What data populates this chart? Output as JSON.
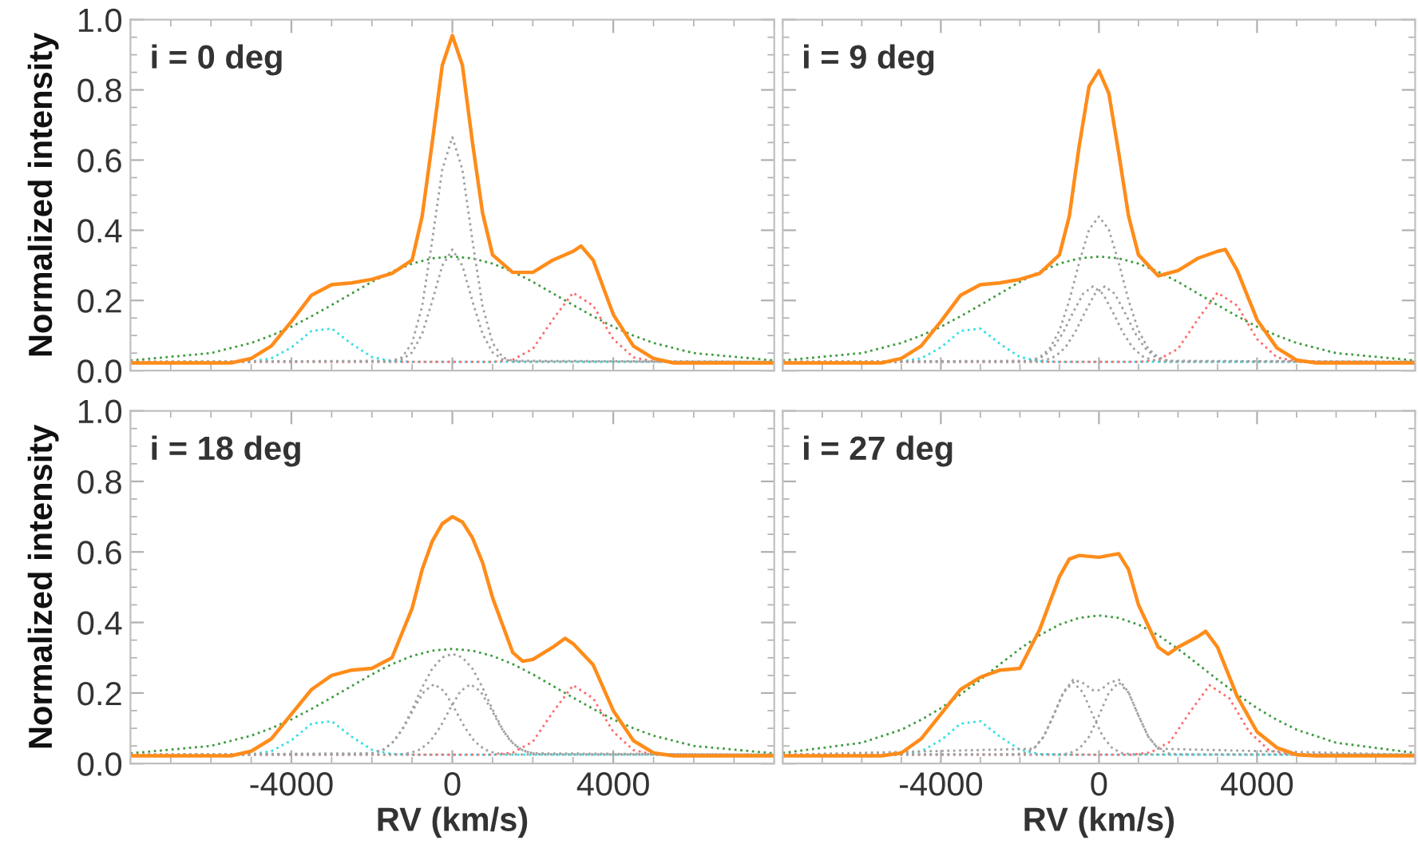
{
  "chart_data": [
    {
      "type": "line",
      "title": "i = 0 deg",
      "ylabel": "Normalized intensity",
      "tick_labels": "y",
      "xlim": [
        -8000,
        8000
      ],
      "ylim": [
        0,
        1.0
      ],
      "xticks": [
        {
          "value": -4000,
          "label": null
        },
        {
          "value": 0,
          "label": null
        },
        {
          "value": 4000,
          "label": null
        }
      ],
      "yticks": [
        {
          "value": 0,
          "label": "0.0"
        },
        0.2,
        0.4,
        0.6,
        0.8,
        {
          "value": 1.0,
          "label": "1.0"
        }
      ],
      "grid": false,
      "series": [
        {
          "color": "#3f9c3f",
          "line_style": "dotted",
          "x": [
            -8000,
            -6000,
            -5000,
            -4500,
            -4000,
            -3500,
            -3000,
            -2500,
            -2000,
            -1500,
            -1000,
            -500,
            0,
            500,
            1000,
            1500,
            2000,
            2500,
            3000,
            3500,
            4000,
            4500,
            5000,
            6000,
            8000
          ],
          "values": [
            0.029,
            0.05,
            0.079,
            0.1,
            0.125,
            0.155,
            0.187,
            0.22,
            0.253,
            0.282,
            0.305,
            0.32,
            0.325,
            0.32,
            0.305,
            0.282,
            0.253,
            0.22,
            0.187,
            0.155,
            0.125,
            0.1,
            0.079,
            0.05,
            0.029
          ]
        },
        {
          "color": "#33e0e6",
          "line_style": "dotted",
          "x": [
            -8000,
            -5000,
            -4500,
            -4000,
            -3500,
            -3000,
            -2500,
            -2000,
            -1500,
            -1000,
            8000
          ],
          "values": [
            0.025,
            0.026,
            0.035,
            0.066,
            0.113,
            0.12,
            0.076,
            0.039,
            0.027,
            0.025,
            0.025
          ]
        },
        {
          "color": "#ff6b6b",
          "line_style": "dotted",
          "x": [
            -8000,
            1000,
            1500,
            2000,
            2500,
            3000,
            3500,
            4000,
            4500,
            5000,
            8000
          ],
          "values": [
            0.025,
            0.025,
            0.031,
            0.062,
            0.146,
            0.222,
            0.185,
            0.09,
            0.038,
            0.026,
            0.025
          ]
        },
        {
          "color": "#a0a0a0",
          "line_style": "dotted",
          "x": [
            -8000,
            -1500,
            -1250,
            -1000,
            -750,
            -500,
            -250,
            0,
            250,
            500,
            750,
            1000,
            1250,
            1500,
            8000
          ],
          "values": [
            0.025,
            0.026,
            0.032,
            0.052,
            0.105,
            0.198,
            0.299,
            0.345,
            0.299,
            0.198,
            0.105,
            0.052,
            0.032,
            0.026,
            0.025
          ]
        },
        {
          "color": "#a0a0a0",
          "line_style": "dotted",
          "x": [
            -8000,
            -1500,
            -1250,
            -1000,
            -750,
            -500,
            -250,
            0,
            250,
            500,
            750,
            1000,
            1250,
            1500,
            8000
          ],
          "values": [
            0.025,
            0.028,
            0.038,
            0.079,
            0.184,
            0.371,
            0.573,
            0.665,
            0.573,
            0.371,
            0.184,
            0.079,
            0.038,
            0.028,
            0.025
          ]
        },
        {
          "color": "#ff8c1a",
          "line_style": "solid",
          "x": [
            -8000,
            -5500,
            -5000,
            -4500,
            -4000,
            -3500,
            -3000,
            -2500,
            -2000,
            -1500,
            -1000,
            -750,
            -500,
            -250,
            0,
            250,
            500,
            750,
            1000,
            1500,
            2000,
            2500,
            3000,
            3200,
            3500,
            4000,
            4500,
            5000,
            5500,
            8000
          ],
          "values": [
            0.022,
            0.022,
            0.035,
            0.07,
            0.14,
            0.215,
            0.245,
            0.25,
            0.26,
            0.277,
            0.315,
            0.44,
            0.65,
            0.87,
            0.955,
            0.87,
            0.65,
            0.45,
            0.33,
            0.28,
            0.28,
            0.315,
            0.34,
            0.355,
            0.315,
            0.16,
            0.07,
            0.035,
            0.022,
            0.022
          ]
        }
      ]
    },
    {
      "type": "line",
      "title": "i = 9 deg",
      "tick_labels": false,
      "xlim": [
        -8000,
        8000
      ],
      "ylim": [
        0,
        1.0
      ],
      "xticks": [
        {
          "value": -4000,
          "label": null
        },
        {
          "value": 0,
          "label": null
        },
        {
          "value": 4000,
          "label": null
        }
      ],
      "yticks": [
        {
          "value": 0,
          "label": null
        },
        {
          "value": 0.2,
          "label": null
        },
        {
          "value": 0.4,
          "label": null
        },
        {
          "value": 0.6,
          "label": null
        },
        {
          "value": 0.8,
          "label": null
        },
        {
          "value": 1.0,
          "label": null
        }
      ],
      "grid": false,
      "series": [
        {
          "color": "#3f9c3f",
          "line_style": "dotted",
          "x": [
            -8000,
            -6000,
            -5000,
            -4500,
            -4000,
            -3500,
            -3000,
            -2500,
            -2000,
            -1500,
            -1000,
            -500,
            0,
            500,
            1000,
            1500,
            2000,
            2500,
            3000,
            3500,
            4000,
            4500,
            5000,
            6000,
            8000
          ],
          "values": [
            0.029,
            0.05,
            0.079,
            0.1,
            0.125,
            0.155,
            0.187,
            0.22,
            0.253,
            0.282,
            0.305,
            0.32,
            0.325,
            0.32,
            0.305,
            0.282,
            0.253,
            0.22,
            0.187,
            0.155,
            0.125,
            0.1,
            0.079,
            0.05,
            0.029
          ]
        },
        {
          "color": "#33e0e6",
          "line_style": "dotted",
          "x": [
            -8000,
            -5000,
            -4500,
            -4000,
            -3500,
            -3000,
            -2500,
            -2000,
            -1500,
            -1000,
            8000
          ],
          "values": [
            0.025,
            0.026,
            0.035,
            0.066,
            0.113,
            0.12,
            0.076,
            0.039,
            0.027,
            0.025,
            0.025
          ]
        },
        {
          "color": "#ff6b6b",
          "line_style": "dotted",
          "x": [
            -8000,
            1000,
            1500,
            2000,
            2500,
            3000,
            3500,
            4000,
            4500,
            5000,
            8000
          ],
          "values": [
            0.025,
            0.025,
            0.031,
            0.062,
            0.146,
            0.222,
            0.185,
            0.09,
            0.038,
            0.026,
            0.025
          ]
        },
        {
          "color": "#a0a0a0",
          "line_style": "dotted",
          "x": [
            -8000,
            -1900,
            -1650,
            -1400,
            -1150,
            -900,
            -650,
            -400,
            -150,
            100,
            350,
            600,
            850,
            1100,
            1350,
            1600,
            8000
          ],
          "values": [
            0.025,
            0.026,
            0.03,
            0.041,
            0.066,
            0.11,
            0.167,
            0.219,
            0.24,
            0.219,
            0.167,
            0.11,
            0.066,
            0.041,
            0.03,
            0.026,
            0.025
          ]
        },
        {
          "color": "#a0a0a0",
          "line_style": "dotted",
          "x": [
            -8000,
            -1600,
            -1350,
            -1100,
            -850,
            -600,
            -350,
            -100,
            150,
            400,
            650,
            900,
            1150,
            1400,
            1650,
            1900,
            8000
          ],
          "values": [
            0.025,
            0.026,
            0.03,
            0.041,
            0.066,
            0.11,
            0.167,
            0.219,
            0.24,
            0.219,
            0.167,
            0.11,
            0.066,
            0.041,
            0.03,
            0.026,
            0.025
          ]
        },
        {
          "color": "#a0a0a0",
          "line_style": "dotted",
          "x": [
            -8000,
            -1750,
            -1500,
            -1250,
            -1000,
            -750,
            -500,
            -250,
            0,
            250,
            500,
            750,
            1000,
            1250,
            1500,
            1750,
            8000
          ],
          "values": [
            0.025,
            0.028,
            0.038,
            0.062,
            0.114,
            0.2,
            0.308,
            0.402,
            0.439,
            0.402,
            0.308,
            0.2,
            0.114,
            0.062,
            0.038,
            0.028,
            0.025
          ]
        },
        {
          "color": "#ff8c1a",
          "line_style": "solid",
          "x": [
            -8000,
            -5500,
            -5000,
            -4500,
            -4000,
            -3500,
            -3000,
            -2500,
            -2000,
            -1500,
            -1000,
            -750,
            -500,
            -250,
            0,
            250,
            500,
            750,
            1000,
            1500,
            2000,
            2500,
            3000,
            3200,
            3500,
            4000,
            4500,
            5000,
            5500,
            8000
          ],
          "values": [
            0.022,
            0.022,
            0.035,
            0.07,
            0.14,
            0.215,
            0.245,
            0.25,
            0.26,
            0.277,
            0.33,
            0.44,
            0.64,
            0.81,
            0.855,
            0.79,
            0.62,
            0.44,
            0.33,
            0.27,
            0.285,
            0.32,
            0.34,
            0.345,
            0.285,
            0.145,
            0.065,
            0.03,
            0.022,
            0.022
          ]
        }
      ]
    },
    {
      "type": "line",
      "title": "i = 18 deg",
      "xlabel": "RV (km/s)",
      "ylabel": "Normalized intensity",
      "xlim": [
        -8000,
        8000
      ],
      "ylim": [
        0,
        1.0
      ],
      "xticks": [
        -4000,
        0,
        4000
      ],
      "yticks": [
        {
          "value": 0,
          "label": "0.0"
        },
        0.2,
        0.4,
        0.6,
        0.8,
        {
          "value": 1.0,
          "label": "1.0"
        }
      ],
      "grid": false,
      "series": [
        {
          "color": "#3f9c3f",
          "line_style": "dotted",
          "x": [
            -8000,
            -6000,
            -5000,
            -4500,
            -4000,
            -3500,
            -3000,
            -2500,
            -2000,
            -1500,
            -1000,
            -500,
            0,
            500,
            1000,
            1500,
            2000,
            2500,
            3000,
            3500,
            4000,
            4500,
            5000,
            6000,
            8000
          ],
          "values": [
            0.029,
            0.05,
            0.079,
            0.1,
            0.125,
            0.155,
            0.187,
            0.22,
            0.253,
            0.282,
            0.305,
            0.32,
            0.325,
            0.32,
            0.305,
            0.282,
            0.253,
            0.22,
            0.187,
            0.155,
            0.125,
            0.1,
            0.079,
            0.05,
            0.029
          ]
        },
        {
          "color": "#33e0e6",
          "line_style": "dotted",
          "x": [
            -8000,
            -5000,
            -4500,
            -4000,
            -3500,
            -3000,
            -2500,
            -2000,
            -1500,
            -1000,
            8000
          ],
          "values": [
            0.025,
            0.026,
            0.035,
            0.066,
            0.113,
            0.12,
            0.076,
            0.039,
            0.027,
            0.025,
            0.025
          ]
        },
        {
          "color": "#ff6b6b",
          "line_style": "dotted",
          "x": [
            -8000,
            1000,
            1500,
            2000,
            2500,
            3000,
            3500,
            4000,
            4500,
            5000,
            8000
          ],
          "values": [
            0.025,
            0.025,
            0.031,
            0.062,
            0.146,
            0.222,
            0.185,
            0.09,
            0.038,
            0.026,
            0.025
          ]
        },
        {
          "color": "#a0a0a0",
          "line_style": "dotted",
          "x": [
            -8000,
            -2200,
            -1950,
            -1700,
            -1450,
            -1200,
            -950,
            -700,
            -450,
            -200,
            50,
            300,
            550,
            800,
            1050,
            1300,
            8000
          ],
          "values": [
            0.025,
            0.026,
            0.03,
            0.04,
            0.063,
            0.104,
            0.157,
            0.205,
            0.225,
            0.205,
            0.157,
            0.104,
            0.063,
            0.04,
            0.03,
            0.026,
            0.025
          ]
        },
        {
          "color": "#a0a0a0",
          "line_style": "dotted",
          "x": [
            -8000,
            -1300,
            -1050,
            -800,
            -550,
            -300,
            -50,
            200,
            450,
            700,
            950,
            1200,
            1450,
            1700,
            1950,
            2200,
            8000
          ],
          "values": [
            0.025,
            0.026,
            0.03,
            0.04,
            0.063,
            0.104,
            0.157,
            0.205,
            0.225,
            0.205,
            0.157,
            0.104,
            0.063,
            0.04,
            0.03,
            0.026,
            0.025
          ]
        },
        {
          "color": "#a0a0a0",
          "line_style": "dotted",
          "x": [
            -8000,
            -2000,
            -1750,
            -1500,
            -1250,
            -1000,
            -750,
            -500,
            -250,
            0,
            250,
            500,
            750,
            1000,
            1250,
            1500,
            1750,
            2000,
            8000
          ],
          "values": [
            0.025,
            0.029,
            0.037,
            0.058,
            0.096,
            0.153,
            0.216,
            0.269,
            0.301,
            0.311,
            0.301,
            0.269,
            0.216,
            0.153,
            0.096,
            0.058,
            0.037,
            0.029,
            0.025
          ]
        },
        {
          "color": "#ff8c1a",
          "line_style": "solid",
          "x": [
            -8000,
            -5500,
            -5000,
            -4500,
            -4000,
            -3500,
            -3000,
            -2500,
            -2000,
            -1500,
            -1000,
            -750,
            -500,
            -250,
            0,
            250,
            500,
            750,
            1000,
            1500,
            1750,
            2000,
            2500,
            2800,
            3000,
            3500,
            4000,
            4500,
            5000,
            5500,
            8000
          ],
          "values": [
            0.022,
            0.022,
            0.035,
            0.07,
            0.14,
            0.21,
            0.25,
            0.265,
            0.27,
            0.3,
            0.44,
            0.55,
            0.63,
            0.68,
            0.7,
            0.685,
            0.64,
            0.57,
            0.47,
            0.315,
            0.29,
            0.295,
            0.33,
            0.355,
            0.34,
            0.28,
            0.15,
            0.065,
            0.03,
            0.022,
            0.022
          ]
        }
      ]
    },
    {
      "type": "line",
      "title": "i = 27 deg",
      "xlabel": "RV (km/s)",
      "tick_labels": "x",
      "xlim": [
        -8000,
        8000
      ],
      "ylim": [
        0,
        1.0
      ],
      "xticks": [
        -4000,
        0,
        4000
      ],
      "yticks": [
        {
          "value": 0,
          "label": null
        },
        {
          "value": 0.2,
          "label": null
        },
        {
          "value": 0.4,
          "label": null
        },
        {
          "value": 0.6,
          "label": null
        },
        {
          "value": 0.8,
          "label": null
        },
        {
          "value": 1.0,
          "label": null
        }
      ],
      "grid": false,
      "series": [
        {
          "color": "#3f9c3f",
          "line_style": "dotted",
          "x": [
            -8000,
            -6000,
            -5000,
            -4500,
            -4000,
            -3500,
            -3000,
            -2500,
            -2000,
            -1500,
            -1000,
            -500,
            0,
            500,
            1000,
            1500,
            2000,
            2500,
            3000,
            3500,
            4000,
            4500,
            5000,
            6000,
            8000
          ],
          "values": [
            0.03,
            0.059,
            0.096,
            0.124,
            0.157,
            0.196,
            0.238,
            0.282,
            0.325,
            0.364,
            0.394,
            0.413,
            0.42,
            0.413,
            0.394,
            0.364,
            0.325,
            0.282,
            0.238,
            0.196,
            0.157,
            0.124,
            0.096,
            0.059,
            0.03
          ]
        },
        {
          "color": "#33e0e6",
          "line_style": "dotted",
          "x": [
            -8000,
            -5000,
            -4500,
            -4000,
            -3500,
            -3000,
            -2500,
            -2000,
            -1500,
            -1000,
            8000
          ],
          "values": [
            0.025,
            0.026,
            0.035,
            0.066,
            0.113,
            0.12,
            0.076,
            0.039,
            0.027,
            0.025,
            0.025
          ]
        },
        {
          "color": "#ff6b6b",
          "line_style": "dotted",
          "x": [
            -8000,
            800,
            1300,
            1800,
            2300,
            2800,
            3300,
            3800,
            4300,
            4800,
            8000
          ],
          "values": [
            0.025,
            0.025,
            0.031,
            0.062,
            0.146,
            0.222,
            0.185,
            0.09,
            0.038,
            0.026,
            0.025
          ]
        },
        {
          "color": "#a0a0a0",
          "line_style": "dotted",
          "x": [
            -8000,
            -2150,
            -1900,
            -1650,
            -1400,
            -1150,
            -900,
            -650,
            -400,
            -150,
            100,
            350,
            600,
            850,
            8000
          ],
          "values": [
            0.025,
            0.026,
            0.029,
            0.042,
            0.076,
            0.136,
            0.201,
            0.23,
            0.201,
            0.136,
            0.076,
            0.042,
            0.029,
            0.026,
            0.025
          ]
        },
        {
          "color": "#a0a0a0",
          "line_style": "dotted",
          "x": [
            -8000,
            -1000,
            -750,
            -500,
            -250,
            0,
            250,
            500,
            750,
            1000,
            1250,
            1500,
            1750,
            2000,
            8000
          ],
          "values": [
            0.025,
            0.026,
            0.029,
            0.042,
            0.076,
            0.136,
            0.201,
            0.23,
            0.201,
            0.136,
            0.076,
            0.042,
            0.029,
            0.026,
            0.025
          ]
        },
        {
          "color": "#a0a0a0",
          "line_style": "dotted",
          "x": [
            -8000,
            -1650,
            -1400,
            -1150,
            -900,
            -650,
            -400,
            -150,
            0,
            100,
            250,
            500,
            750,
            1000,
            1250,
            1500,
            8000
          ],
          "values": [
            0.025,
            0.042,
            0.076,
            0.136,
            0.202,
            0.238,
            0.228,
            0.208,
            0.208,
            0.214,
            0.228,
            0.238,
            0.202,
            0.136,
            0.076,
            0.042,
            0.025
          ]
        },
        {
          "color": "#ff8c1a",
          "line_style": "solid",
          "x": [
            -8000,
            -5500,
            -5000,
            -4500,
            -4000,
            -3500,
            -3000,
            -2500,
            -2000,
            -1500,
            -1000,
            -750,
            -500,
            0,
            500,
            750,
            1000,
            1500,
            1750,
            2000,
            2500,
            2700,
            3000,
            3500,
            4000,
            4500,
            5000,
            5500,
            8000
          ],
          "values": [
            0.022,
            0.022,
            0.03,
            0.07,
            0.14,
            0.21,
            0.245,
            0.265,
            0.27,
            0.38,
            0.53,
            0.58,
            0.59,
            0.585,
            0.595,
            0.55,
            0.45,
            0.33,
            0.31,
            0.33,
            0.36,
            0.375,
            0.33,
            0.19,
            0.09,
            0.045,
            0.025,
            0.022,
            0.022
          ]
        }
      ]
    }
  ]
}
